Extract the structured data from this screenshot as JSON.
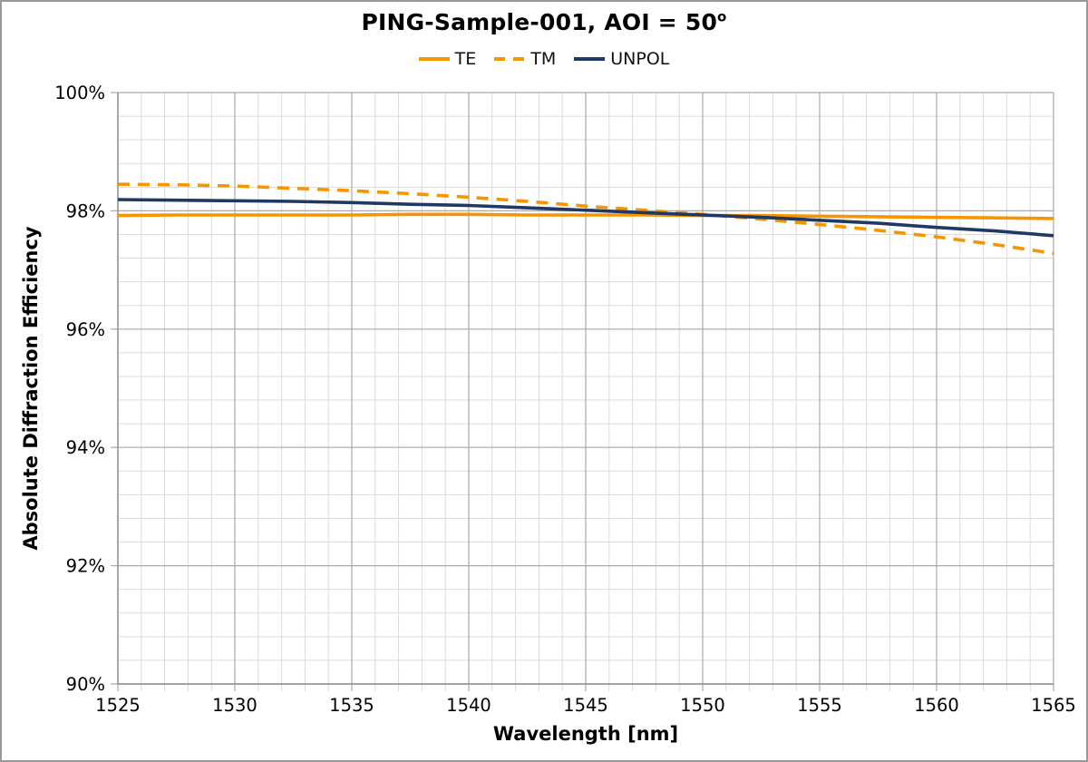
{
  "chart": {
    "title_main": "PING-Sample-001, AOI = 50",
    "title_sup": "o",
    "xlabel": "Wavelength [nm]",
    "ylabel": "Absolute Diffraction Efficiency",
    "legend": [
      {
        "label": "TE"
      },
      {
        "label": "TM"
      },
      {
        "label": "UNPOL"
      }
    ]
  },
  "chart_data": {
    "type": "line",
    "title": "PING-Sample-001, AOI = 50°",
    "xlabel": "Wavelength [nm]",
    "ylabel": "Absolute Diffraction Efficiency",
    "xlim": [
      1525,
      1565
    ],
    "ylim": [
      90,
      100
    ],
    "x_major_tick": 5,
    "x_minor_tick": 1,
    "y_major_tick": 2,
    "y_minor_tick": 0.4,
    "y_tick_suffix": "%",
    "grid": true,
    "legend_position": "top",
    "x": [
      1525,
      1527.5,
      1530,
      1532.5,
      1535,
      1537.5,
      1540,
      1542.5,
      1545,
      1547.5,
      1550,
      1552.5,
      1555,
      1557.5,
      1560,
      1562.5,
      1565
    ],
    "series": [
      {
        "name": "TE",
        "style": "solid",
        "color": "#F79500",
        "values": [
          97.92,
          97.93,
          97.93,
          97.93,
          97.93,
          97.94,
          97.94,
          97.93,
          97.93,
          97.93,
          97.92,
          97.92,
          97.91,
          97.9,
          97.89,
          97.88,
          97.87
        ]
      },
      {
        "name": "TM",
        "style": "dashed",
        "color": "#F79500",
        "values": [
          98.45,
          98.44,
          98.42,
          98.38,
          98.34,
          98.29,
          98.23,
          98.16,
          98.08,
          98.01,
          97.94,
          97.86,
          97.77,
          97.67,
          97.56,
          97.43,
          97.28
        ]
      },
      {
        "name": "UNPOL",
        "style": "solid",
        "color": "#1F3864",
        "values": [
          98.19,
          98.18,
          98.17,
          98.16,
          98.14,
          98.11,
          98.09,
          98.05,
          98.01,
          97.97,
          97.93,
          97.89,
          97.84,
          97.79,
          97.72,
          97.66,
          97.58
        ]
      }
    ],
    "colors": {
      "te_line": "#F79500",
      "tm_line": "#F79500",
      "unpol_line": "#1F3864",
      "grid_minor": "#DBDBDB",
      "grid_major": "#A9A9A9",
      "axis": "#8C8C8C",
      "tick_label": "#000000"
    }
  }
}
